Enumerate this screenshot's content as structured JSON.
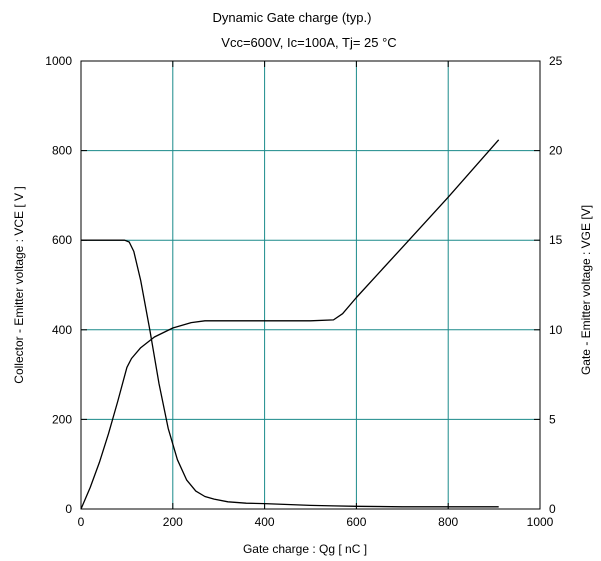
{
  "chart_data": {
    "type": "line",
    "title": "Dynamic Gate charge  (typ.)",
    "subtitle": "Vcc=600V, Ic=100A, Tj= 25 °C",
    "xlabel": "Gate charge  :  Qg  [ nC ]",
    "ylabel_left": "Collector - Emitter voltage  :  VCE  [ V ]",
    "ylabel_right": "Gate - Emitter voltage  :  VGE  [V]",
    "xlim": [
      0,
      1000
    ],
    "ylim_left": [
      0,
      1000
    ],
    "ylim_right": [
      0,
      25
    ],
    "x_ticks": [
      "0",
      "200",
      "400",
      "600",
      "800",
      "1000"
    ],
    "y_left_ticks": [
      "0",
      "200",
      "400",
      "600",
      "800",
      "1000"
    ],
    "y_right_ticks": [
      "0",
      "5",
      "10",
      "15",
      "20",
      "25"
    ],
    "grid": true,
    "grid_color": "#1a8a8a",
    "series": [
      {
        "axis": "left",
        "x": [
          0,
          60,
          95,
          105,
          115,
          130,
          150,
          170,
          190,
          210,
          230,
          250,
          270,
          290,
          320,
          360,
          400,
          450,
          500,
          550,
          600,
          700,
          800,
          910
        ],
        "y": [
          600,
          600,
          600,
          596,
          575,
          510,
          400,
          280,
          180,
          110,
          65,
          40,
          28,
          22,
          16,
          13,
          12,
          10,
          8,
          7,
          6,
          5,
          5,
          5
        ]
      },
      {
        "axis": "right",
        "x": [
          0,
          20,
          40,
          60,
          80,
          100,
          110,
          130,
          160,
          200,
          240,
          270,
          300,
          400,
          500,
          550,
          570,
          600,
          700,
          800,
          910
        ],
        "y": [
          0,
          1.2,
          2.6,
          4.2,
          6.0,
          7.9,
          8.4,
          9.0,
          9.6,
          10.1,
          10.4,
          10.5,
          10.5,
          10.5,
          10.5,
          10.55,
          10.9,
          11.8,
          14.6,
          17.4,
          20.6
        ]
      }
    ]
  }
}
